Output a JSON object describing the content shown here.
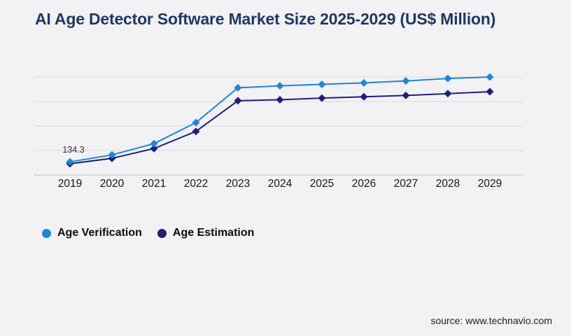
{
  "page": {
    "background_color": "#f2f2f4"
  },
  "header": {
    "title": "AI Age Detector Software Market Size 2025-2029 (US$ Million)",
    "title_color": "#1f3864"
  },
  "footer": {
    "source": "source: www.technavio.com"
  },
  "legend": {
    "items": [
      {
        "label": "Age Verification",
        "color": "#1e86d2"
      },
      {
        "label": "Age Estimation",
        "color": "#201e78"
      }
    ]
  },
  "chart_data": {
    "type": "line",
    "title": "AI Age Detector Software Market Size 2025-2029 (US$ Million)",
    "xlabel": "",
    "ylabel": "",
    "categories": [
      "2019",
      "2020",
      "2021",
      "2022",
      "2023",
      "2024",
      "2025",
      "2026",
      "2027",
      "2028",
      "2029"
    ],
    "series": [
      {
        "name": "Age Verification",
        "color": "#1e86d2",
        "marker": "diamond",
        "values": [
          134.3,
          205,
          320,
          535,
          890,
          910,
          925,
          940,
          960,
          985,
          1000
        ]
      },
      {
        "name": "Age Estimation",
        "color": "#201e78",
        "marker": "diamond",
        "values": [
          115,
          170,
          270,
          445,
          758,
          768,
          785,
          798,
          812,
          830,
          850
        ]
      }
    ],
    "ylim": [
      0,
      1000
    ],
    "gridlines": [
      0,
      250,
      500,
      750,
      1000
    ],
    "grid": true,
    "y_axis_labels_visible": false,
    "legend_position": "bottom-left",
    "annotations": [
      {
        "series": "Age Verification",
        "category": "2019",
        "text": "134.3"
      }
    ],
    "colors": {
      "gridline": "#d9d9dc",
      "axis": "#c3c3c8"
    }
  }
}
